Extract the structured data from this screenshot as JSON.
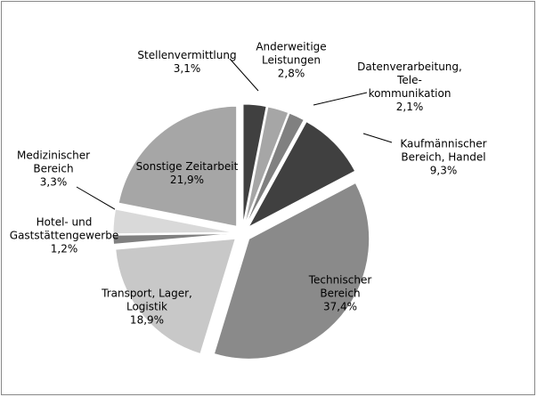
{
  "chart_data": {
    "type": "pie",
    "categories": [
      "Stellenvermittlung",
      "Anderweitige\nLeistungen",
      "Datenverarbeitung,\nTele-\nkommunikation",
      "Kaufmännischer\nBereich, Handel",
      "Technischer\nBereich",
      "Transport, Lager,\nLogistik",
      "Hotel- und\nGaststättengewerbe",
      "Medizinischer\nBereich",
      "Sonstige Zeitarbeit"
    ],
    "values": [
      3.1,
      2.8,
      2.1,
      9.3,
      37.4,
      18.9,
      1.2,
      3.3,
      21.9
    ],
    "value_labels": [
      "3,1%",
      "2,8%",
      "2,1%",
      "9,3%",
      "37,4%",
      "18,9%",
      "1,2%",
      "3,3%",
      "21,9%"
    ],
    "colors": [
      "#404040",
      "#a6a6a6",
      "#808080",
      "#404040",
      "#8a8a8a",
      "#c8c8c8",
      "#808080",
      "#d9d9d9",
      "#a6a6a6"
    ]
  }
}
